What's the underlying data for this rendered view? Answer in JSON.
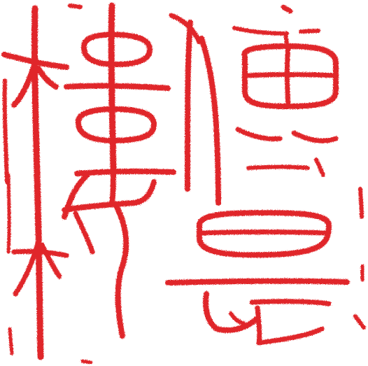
{
  "seal": {
    "ink_color": "#e0262b",
    "background_color": "#ffffff",
    "style": "seal-script stamp impression",
    "characters_lettering": [
      "棣",
      "德",
      "長"
    ]
  }
}
